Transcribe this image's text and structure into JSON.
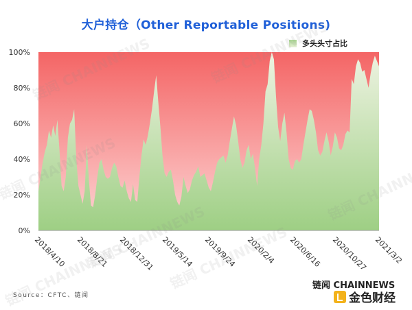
{
  "title": "大户持仓（Other Reportable Positions)",
  "source": "Source：CFTC、链闻",
  "brand": {
    "chainnews": "链闻 CHAINNEWS",
    "logo_name": "金色财经"
  },
  "watermark": "链闻 CHAINNEWS",
  "colors": {
    "red_top": "#f46565",
    "red_bottom": "#fdd7d7",
    "green_top": "#eef3e2",
    "green_bottom": "#9ecf84",
    "title": "#2060d8"
  },
  "chart_data": {
    "type": "area",
    "title": "大户持仓（Other Reportable Positions)",
    "xlabel": "",
    "ylabel": "",
    "ylim": [
      0,
      100
    ],
    "y_ticks": [
      "0%",
      "20%",
      "40%",
      "60%",
      "80%",
      "100%"
    ],
    "x_tick_labels": [
      "2018/4/10",
      "2018/8/21",
      "2018/12/31",
      "2019/5/14",
      "2019/9/24",
      "2020/2/4",
      "2020/6/16",
      "2020/10/27",
      "2021/3/2"
    ],
    "series": [
      {
        "name": "多头头寸占比",
        "values": [
          22,
          30,
          38,
          44,
          48,
          56,
          52,
          59,
          53,
          62,
          45,
          25,
          22,
          30,
          52,
          60,
          62,
          68,
          40,
          25,
          20,
          15,
          22,
          48,
          28,
          14,
          13,
          20,
          30,
          38,
          40,
          34,
          30,
          29,
          30,
          35,
          38,
          36,
          30,
          25,
          24,
          28,
          22,
          18,
          16,
          26,
          17,
          16,
          30,
          42,
          51,
          48,
          53,
          60,
          68,
          78,
          87,
          72,
          58,
          42,
          32,
          30,
          33,
          34,
          28,
          20,
          16,
          14,
          19,
          30,
          25,
          21,
          23,
          28,
          31,
          33,
          36,
          30,
          31,
          32,
          28,
          24,
          22,
          27,
          33,
          38,
          40,
          41,
          42,
          38,
          42,
          50,
          57,
          64,
          59,
          50,
          40,
          35,
          38,
          45,
          48,
          40,
          43,
          35,
          25,
          40,
          48,
          60,
          78,
          82,
          95,
          100,
          96,
          75,
          58,
          50,
          60,
          66,
          55,
          40,
          35,
          34,
          39,
          40,
          38,
          40,
          48,
          55,
          62,
          68,
          67,
          62,
          55,
          45,
          42,
          44,
          50,
          55,
          50,
          42,
          47,
          55,
          52,
          46,
          45,
          48,
          54,
          56,
          55,
          85,
          82,
          92,
          96,
          94,
          89,
          90,
          85,
          80,
          88,
          94,
          98,
          95,
          92
        ]
      }
    ]
  }
}
